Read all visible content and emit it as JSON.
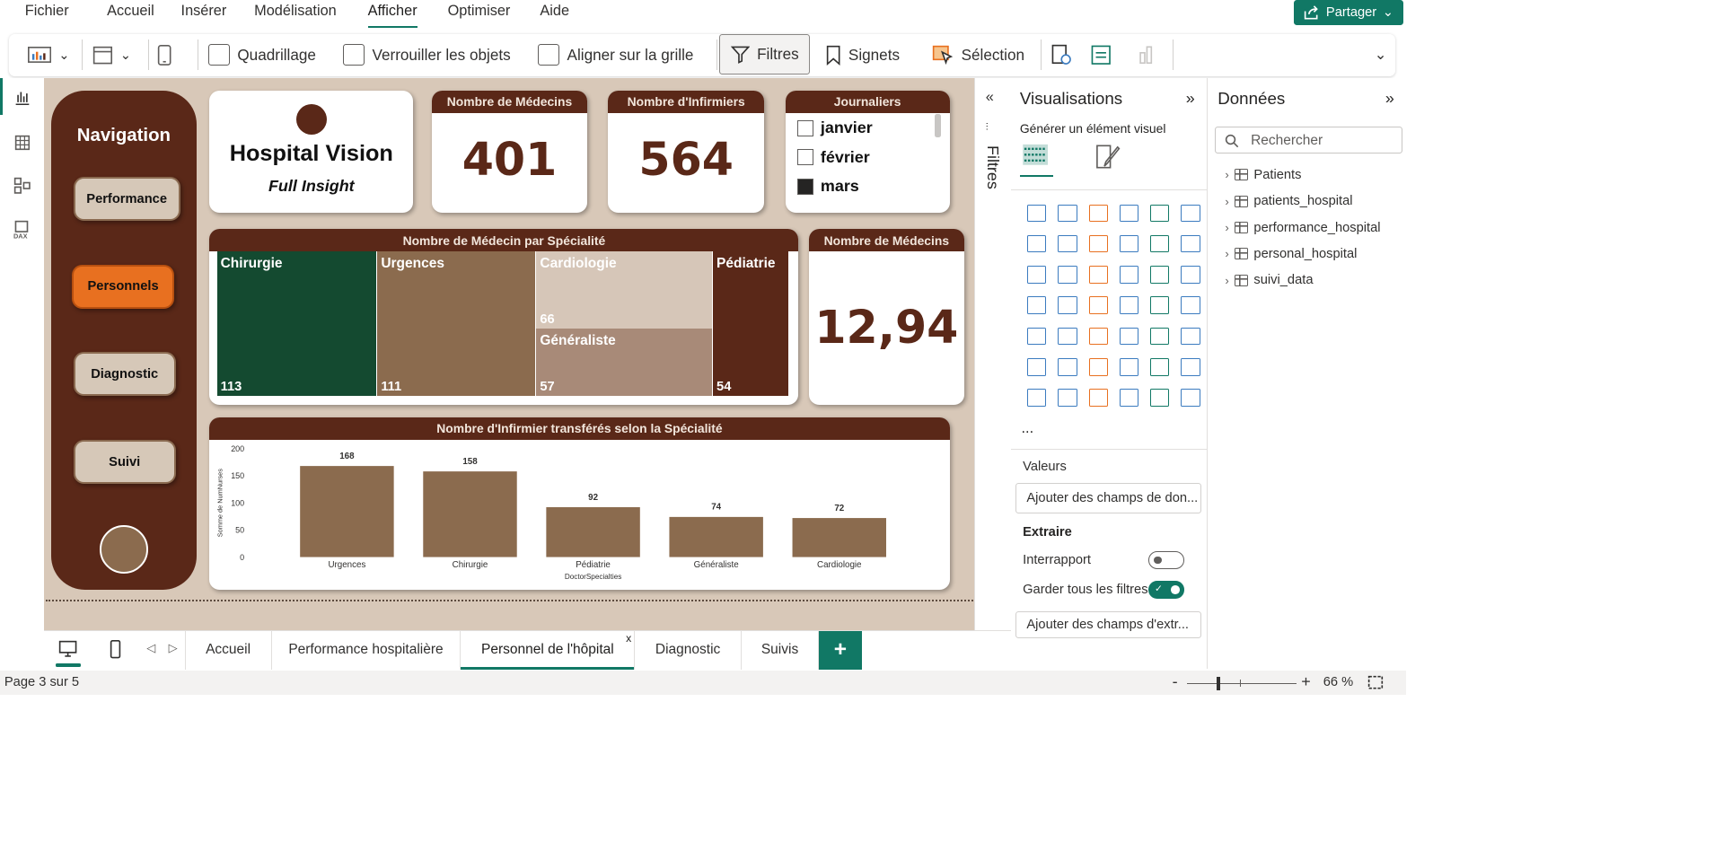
{
  "menu": [
    "Fichier",
    "Accueil",
    "Insérer",
    "Modélisation",
    "Afficher",
    "Optimiser",
    "Aide"
  ],
  "menu_active": "Afficher",
  "share_label": "Partager",
  "ribbon": {
    "gridlines": "Quadrillage",
    "lock_objects": "Verrouiller les objets",
    "snap_grid": "Aligner sur la grille",
    "filters": "Filtres",
    "bookmarks": "Signets",
    "selection": "Sélection"
  },
  "nav": {
    "title": "Navigation",
    "buttons": [
      "Performance",
      "Personnels",
      "Diagnostic",
      "Suivi"
    ],
    "selected": "Personnels"
  },
  "logo": {
    "title": "Hospital Vision",
    "subtitle": "Full Insight"
  },
  "kpi1": {
    "title": "Nombre de Médecins",
    "value": "401"
  },
  "kpi2": {
    "title": "Nombre d'Infirmiers",
    "value": "564"
  },
  "kpi3": {
    "title": "Nombre de Médecins",
    "value": "12,94"
  },
  "slicer": {
    "title": "Journaliers",
    "items": [
      {
        "label": "janvier",
        "checked": false
      },
      {
        "label": "février",
        "checked": false
      },
      {
        "label": "mars",
        "checked": true
      }
    ]
  },
  "treemap": {
    "title": "Nombre de Médecin par Spécialité",
    "items": [
      {
        "label": "Chirurgie",
        "value": "113",
        "color": "#144a30"
      },
      {
        "label": "Urgences",
        "value": "111",
        "color": "#8b6b4e"
      },
      {
        "label": "Cardiologie",
        "value": "66",
        "color": "#d6c6b8"
      },
      {
        "label": "Généraliste",
        "value": "57",
        "color": "#a88a78"
      },
      {
        "label": "Pédiatrie",
        "value": "54",
        "color": "#5a2818"
      }
    ]
  },
  "chart_data": {
    "type": "bar",
    "title": "Nombre d'Infirmier transférés selon la Spécialité",
    "categories": [
      "Urgences",
      "Chirurgie",
      "Pédiatrie",
      "Généraliste",
      "Cardiologie"
    ],
    "values": [
      168,
      158,
      92,
      74,
      72
    ],
    "xlabel": "DoctorSpecialties",
    "ylabel": "Somme de NumNurses",
    "ylim": [
      0,
      200
    ],
    "yticks": [
      "0",
      "50",
      "100",
      "150",
      "200"
    ],
    "bar_color": "#8b6b4e"
  },
  "filters_label": "Filtres",
  "visualizations": {
    "title": "Visualisations",
    "subtitle": "Générer un élément visuel",
    "more": "...",
    "values_label": "Valeurs",
    "values_placeholder": "Ajouter des champs de don...",
    "extract_label": "Extraire",
    "cross_report": "Interrapport",
    "keep_filters": "Garder tous les filtres",
    "extract_placeholder": "Ajouter des champs d'extr..."
  },
  "data_pane": {
    "title": "Données",
    "search_placeholder": "Rechercher",
    "tables": [
      "Patients",
      "patients_hospital",
      "performance_hospital",
      "personal_hospital",
      "suivi_data"
    ]
  },
  "tabs": [
    "Accueil",
    "Performance hospitalière",
    "Personnel de l'hôpital",
    "Diagnostic",
    "Suivis"
  ],
  "tab_active": "Personnel de l'hôpital",
  "tab_close": "x",
  "status": {
    "page": "Page 3 sur 5",
    "zoom": "66 %"
  }
}
